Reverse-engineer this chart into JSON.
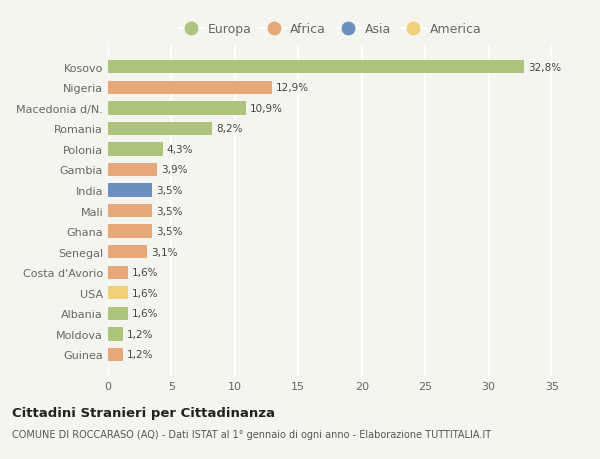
{
  "countries": [
    "Guinea",
    "Moldova",
    "Albania",
    "USA",
    "Costa d'Avorio",
    "Senegal",
    "Ghana",
    "Mali",
    "India",
    "Gambia",
    "Polonia",
    "Romania",
    "Macedonia d/N.",
    "Nigeria",
    "Kosovo"
  ],
  "values": [
    1.2,
    1.2,
    1.6,
    1.6,
    1.6,
    3.1,
    3.5,
    3.5,
    3.5,
    3.9,
    4.3,
    8.2,
    10.9,
    12.9,
    32.8
  ],
  "continents": [
    "Africa",
    "Europa",
    "Europa",
    "America",
    "Africa",
    "Africa",
    "Africa",
    "Africa",
    "Asia",
    "Africa",
    "Europa",
    "Europa",
    "Europa",
    "Africa",
    "Europa"
  ],
  "colors": {
    "Europa": "#adc47c",
    "Africa": "#e8a97a",
    "Asia": "#6b8fbf",
    "America": "#f0d07a"
  },
  "title": "Cittadini Stranieri per Cittadinanza",
  "subtitle": "COMUNE DI ROCCARASO (AQ) - Dati ISTAT al 1° gennaio di ogni anno - Elaborazione TUTTITALIA.IT",
  "xlim": [
    0,
    35
  ],
  "xticks": [
    0,
    5,
    10,
    15,
    20,
    25,
    30,
    35
  ],
  "background_color": "#f5f5f0",
  "bar_height": 0.65,
  "value_labels": [
    "1,2%",
    "1,2%",
    "1,6%",
    "1,6%",
    "1,6%",
    "3,1%",
    "3,5%",
    "3,5%",
    "3,5%",
    "3,9%",
    "4,3%",
    "8,2%",
    "10,9%",
    "12,9%",
    "32,8%"
  ],
  "legend_order": [
    "Europa",
    "Africa",
    "Asia",
    "America"
  ],
  "grid_color": "#ffffff",
  "label_color": "#666666",
  "text_color": "#444444"
}
